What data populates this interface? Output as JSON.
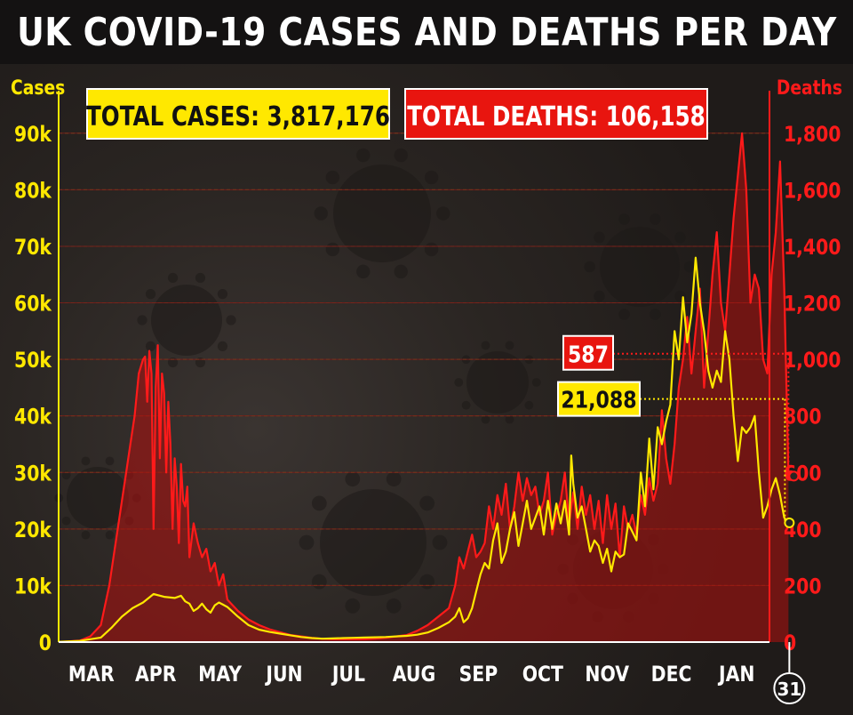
{
  "title": "UK COVID-19 CASES AND DEATHS PER DAY",
  "colors": {
    "cases": "#ffe800",
    "deaths": "#ff1a1a",
    "deaths_fill": "#b3100f",
    "background": "#2a2522",
    "title_bg": "#141212"
  },
  "totals": {
    "cases_label": "TOTAL CASES: 3,817,176",
    "deaths_label": "TOTAL DEATHS: 106,158"
  },
  "callouts": {
    "deaths_latest": "587",
    "cases_latest": "21,088"
  },
  "last_day_marker": "31",
  "chart_data": {
    "type": "line",
    "x_unit": "day (2020-03-01 = 0)",
    "categories": [
      "MAR",
      "APR",
      "MAY",
      "JUN",
      "JUL",
      "AUG",
      "SEP",
      "OCT",
      "NOV",
      "DEC",
      "JAN"
    ],
    "category_starts": [
      0,
      31,
      61,
      92,
      122,
      153,
      184,
      214,
      245,
      275,
      306
    ],
    "xlim": [
      0,
      337
    ],
    "left_axis": {
      "label": "Cases",
      "ylim": [
        0,
        95000
      ],
      "ticks": [
        0,
        10000,
        20000,
        30000,
        40000,
        50000,
        60000,
        70000,
        80000,
        90000
      ],
      "tick_labels": [
        "0",
        "10k",
        "20k",
        "30k",
        "40k",
        "50k",
        "60k",
        "70k",
        "80k",
        "90k"
      ]
    },
    "right_axis": {
      "label": "Deaths",
      "ylim": [
        0,
        1900
      ],
      "ticks": [
        0,
        200,
        400,
        600,
        800,
        1000,
        1200,
        1400,
        1600,
        1800
      ],
      "tick_labels": [
        "0",
        "200",
        "400",
        "600",
        "800",
        "1,000",
        "1,200",
        "1,400",
        "1,600",
        "1,800"
      ]
    },
    "grid": true,
    "series": [
      {
        "name": "Cases",
        "axis": "left",
        "points": [
          [
            0,
            50
          ],
          [
            10,
            200
          ],
          [
            20,
            800
          ],
          [
            25,
            2500
          ],
          [
            30,
            4500
          ],
          [
            35,
            6000
          ],
          [
            40,
            7000
          ],
          [
            45,
            8500
          ],
          [
            50,
            8000
          ],
          [
            55,
            7800
          ],
          [
            58,
            8200
          ],
          [
            60,
            7200
          ],
          [
            62,
            6800
          ],
          [
            64,
            5500
          ],
          [
            66,
            6000
          ],
          [
            68,
            6800
          ],
          [
            70,
            5800
          ],
          [
            72,
            5200
          ],
          [
            74,
            6500
          ],
          [
            76,
            7000
          ],
          [
            78,
            6600
          ],
          [
            80,
            6200
          ],
          [
            85,
            4500
          ],
          [
            90,
            3000
          ],
          [
            95,
            2200
          ],
          [
            100,
            1800
          ],
          [
            105,
            1500
          ],
          [
            110,
            1200
          ],
          [
            115,
            900
          ],
          [
            120,
            700
          ],
          [
            125,
            600
          ],
          [
            130,
            650
          ],
          [
            135,
            700
          ],
          [
            140,
            750
          ],
          [
            145,
            800
          ],
          [
            150,
            850
          ],
          [
            155,
            900
          ],
          [
            160,
            1000
          ],
          [
            165,
            1100
          ],
          [
            170,
            1300
          ],
          [
            175,
            1700
          ],
          [
            180,
            2500
          ],
          [
            185,
            3500
          ],
          [
            188,
            4500
          ],
          [
            190,
            6000
          ],
          [
            192,
            3500
          ],
          [
            194,
            4200
          ],
          [
            196,
            6000
          ],
          [
            198,
            9000
          ],
          [
            200,
            12000
          ],
          [
            202,
            14000
          ],
          [
            204,
            13000
          ],
          [
            206,
            18000
          ],
          [
            208,
            21000
          ],
          [
            210,
            14000
          ],
          [
            212,
            16000
          ],
          [
            214,
            20000
          ],
          [
            216,
            23000
          ],
          [
            218,
            17000
          ],
          [
            220,
            21000
          ],
          [
            222,
            25000
          ],
          [
            224,
            20000
          ],
          [
            226,
            22000
          ],
          [
            228,
            24000
          ],
          [
            230,
            19000
          ],
          [
            232,
            25000
          ],
          [
            234,
            20000
          ],
          [
            236,
            24500
          ],
          [
            238,
            21000
          ],
          [
            240,
            25000
          ],
          [
            242,
            19000
          ],
          [
            243,
            33000
          ],
          [
            244,
            28000
          ],
          [
            246,
            22000
          ],
          [
            248,
            24000
          ],
          [
            250,
            20000
          ],
          [
            252,
            16000
          ],
          [
            254,
            18000
          ],
          [
            256,
            17000
          ],
          [
            258,
            14000
          ],
          [
            260,
            16500
          ],
          [
            262,
            12500
          ],
          [
            264,
            16000
          ],
          [
            266,
            15000
          ],
          [
            268,
            15500
          ],
          [
            270,
            21000
          ],
          [
            272,
            19500
          ],
          [
            274,
            18000
          ],
          [
            276,
            30000
          ],
          [
            278,
            24000
          ],
          [
            280,
            36000
          ],
          [
            282,
            27000
          ],
          [
            284,
            38000
          ],
          [
            286,
            35000
          ],
          [
            288,
            39000
          ],
          [
            290,
            42000
          ],
          [
            292,
            55000
          ],
          [
            294,
            50000
          ],
          [
            296,
            61000
          ],
          [
            298,
            53000
          ],
          [
            300,
            58000
          ],
          [
            302,
            68000
          ],
          [
            304,
            60000
          ],
          [
            306,
            55000
          ],
          [
            308,
            48000
          ],
          [
            310,
            45000
          ],
          [
            312,
            48000
          ],
          [
            314,
            46000
          ],
          [
            316,
            55000
          ],
          [
            318,
            50000
          ],
          [
            320,
            40000
          ],
          [
            322,
            32000
          ],
          [
            324,
            38000
          ],
          [
            326,
            37000
          ],
          [
            328,
            38000
          ],
          [
            330,
            40000
          ],
          [
            332,
            30000
          ],
          [
            334,
            22000
          ],
          [
            336,
            24000
          ],
          [
            338,
            27000
          ],
          [
            340,
            29000
          ],
          [
            342,
            26000
          ],
          [
            344,
            22000
          ],
          [
            346,
            21088
          ]
        ]
      },
      {
        "name": "Deaths",
        "axis": "right",
        "points": [
          [
            0,
            0
          ],
          [
            10,
            5
          ],
          [
            15,
            20
          ],
          [
            20,
            60
          ],
          [
            22,
            130
          ],
          [
            24,
            200
          ],
          [
            26,
            300
          ],
          [
            28,
            400
          ],
          [
            30,
            500
          ],
          [
            32,
            600
          ],
          [
            34,
            700
          ],
          [
            36,
            800
          ],
          [
            38,
            950
          ],
          [
            40,
            1000
          ],
          [
            41,
            1010
          ],
          [
            42,
            850
          ],
          [
            43,
            1030
          ],
          [
            44,
            950
          ],
          [
            45,
            400
          ],
          [
            46,
            900
          ],
          [
            47,
            1050
          ],
          [
            48,
            650
          ],
          [
            49,
            950
          ],
          [
            50,
            880
          ],
          [
            51,
            600
          ],
          [
            52,
            850
          ],
          [
            53,
            700
          ],
          [
            54,
            400
          ],
          [
            55,
            650
          ],
          [
            56,
            550
          ],
          [
            57,
            350
          ],
          [
            58,
            630
          ],
          [
            59,
            500
          ],
          [
            60,
            480
          ],
          [
            61,
            550
          ],
          [
            62,
            300
          ],
          [
            64,
            420
          ],
          [
            66,
            350
          ],
          [
            68,
            300
          ],
          [
            70,
            330
          ],
          [
            72,
            250
          ],
          [
            74,
            280
          ],
          [
            76,
            200
          ],
          [
            78,
            240
          ],
          [
            80,
            150
          ],
          [
            85,
            110
          ],
          [
            90,
            80
          ],
          [
            95,
            60
          ],
          [
            100,
            45
          ],
          [
            105,
            35
          ],
          [
            110,
            25
          ],
          [
            115,
            20
          ],
          [
            120,
            15
          ],
          [
            125,
            12
          ],
          [
            130,
            10
          ],
          [
            135,
            10
          ],
          [
            140,
            10
          ],
          [
            145,
            10
          ],
          [
            150,
            12
          ],
          [
            155,
            15
          ],
          [
            160,
            20
          ],
          [
            165,
            25
          ],
          [
            170,
            40
          ],
          [
            175,
            60
          ],
          [
            180,
            90
          ],
          [
            185,
            120
          ],
          [
            188,
            200
          ],
          [
            190,
            300
          ],
          [
            192,
            260
          ],
          [
            194,
            320
          ],
          [
            196,
            380
          ],
          [
            198,
            300
          ],
          [
            200,
            320
          ],
          [
            202,
            350
          ],
          [
            204,
            480
          ],
          [
            206,
            400
          ],
          [
            208,
            520
          ],
          [
            210,
            450
          ],
          [
            212,
            560
          ],
          [
            214,
            400
          ],
          [
            216,
            480
          ],
          [
            218,
            600
          ],
          [
            220,
            500
          ],
          [
            222,
            580
          ],
          [
            224,
            520
          ],
          [
            226,
            550
          ],
          [
            228,
            450
          ],
          [
            230,
            500
          ],
          [
            232,
            600
          ],
          [
            234,
            380
          ],
          [
            236,
            450
          ],
          [
            238,
            500
          ],
          [
            240,
            600
          ],
          [
            242,
            420
          ],
          [
            244,
            530
          ],
          [
            246,
            400
          ],
          [
            248,
            550
          ],
          [
            250,
            450
          ],
          [
            252,
            520
          ],
          [
            254,
            400
          ],
          [
            256,
            500
          ],
          [
            258,
            350
          ],
          [
            260,
            520
          ],
          [
            262,
            400
          ],
          [
            264,
            490
          ],
          [
            266,
            300
          ],
          [
            268,
            480
          ],
          [
            270,
            400
          ],
          [
            272,
            450
          ],
          [
            274,
            380
          ],
          [
            276,
            520
          ],
          [
            278,
            450
          ],
          [
            280,
            580
          ],
          [
            282,
            500
          ],
          [
            284,
            560
          ],
          [
            286,
            820
          ],
          [
            288,
            650
          ],
          [
            290,
            560
          ],
          [
            292,
            700
          ],
          [
            294,
            900
          ],
          [
            296,
            1000
          ],
          [
            298,
            1150
          ],
          [
            300,
            950
          ],
          [
            302,
            1100
          ],
          [
            304,
            1250
          ],
          [
            306,
            900
          ],
          [
            308,
            1100
          ],
          [
            310,
            1300
          ],
          [
            312,
            1450
          ],
          [
            314,
            1200
          ],
          [
            316,
            1100
          ],
          [
            318,
            1300
          ],
          [
            320,
            1500
          ],
          [
            322,
            1650
          ],
          [
            324,
            1800
          ],
          [
            326,
            1600
          ],
          [
            328,
            1200
          ],
          [
            330,
            1300
          ],
          [
            332,
            1250
          ],
          [
            334,
            1000
          ],
          [
            336,
            950
          ],
          [
            338,
            1300
          ],
          [
            340,
            1450
          ],
          [
            342,
            1700
          ],
          [
            344,
            1250
          ],
          [
            346,
            587
          ]
        ]
      }
    ]
  }
}
